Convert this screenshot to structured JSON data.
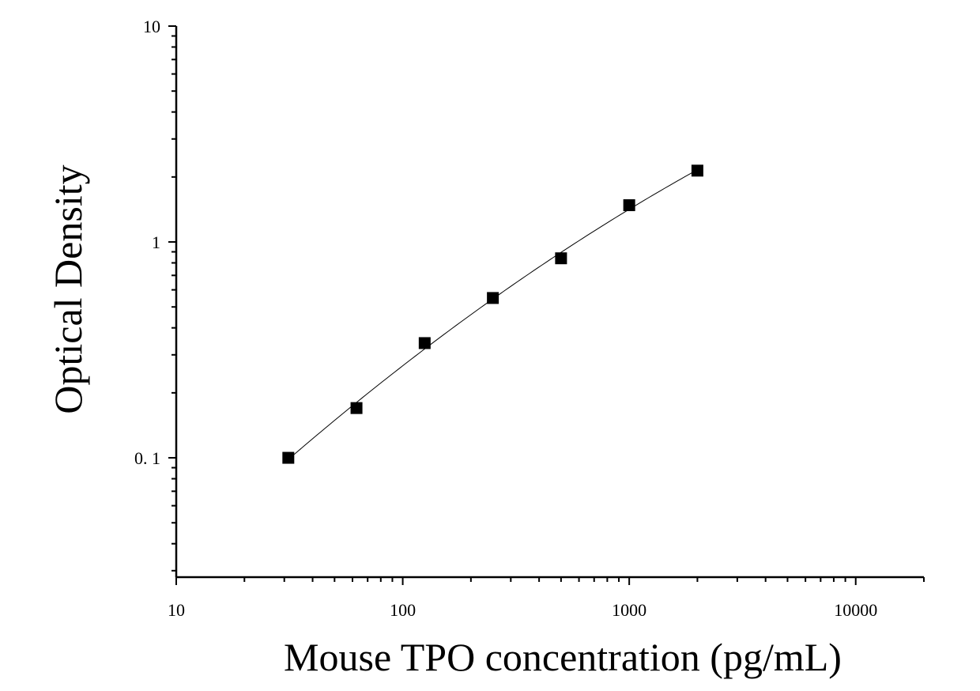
{
  "chart_data": {
    "type": "scatter",
    "title": "",
    "xlabel": "Mouse TPO concentration (pg/mL)",
    "ylabel": "Optical Density",
    "x_scale": "log",
    "y_scale": "log",
    "xlim": [
      10,
      20000
    ],
    "ylim": [
      0.028,
      10
    ],
    "x_ticks": [
      {
        "value": 10,
        "label": "10"
      },
      {
        "value": 100,
        "label": "100"
      },
      {
        "value": 1000,
        "label": "1000"
      },
      {
        "value": 10000,
        "label": "10000"
      }
    ],
    "y_ticks": [
      {
        "value": 0.1,
        "label": "0. 1"
      },
      {
        "value": 1,
        "label": "1"
      },
      {
        "value": 10,
        "label": "10"
      }
    ],
    "grid": false,
    "legend": "none",
    "series": [
      {
        "x": [
          31.25,
          62.5,
          125,
          250,
          500,
          1000,
          2000
        ],
        "y": [
          0.1,
          0.17,
          0.34,
          0.55,
          0.84,
          1.48,
          2.14
        ],
        "marker": "square",
        "fit_curve": true
      }
    ],
    "colors": {
      "marker": "#000000",
      "curve": "#000000",
      "axes": "#000000"
    }
  }
}
